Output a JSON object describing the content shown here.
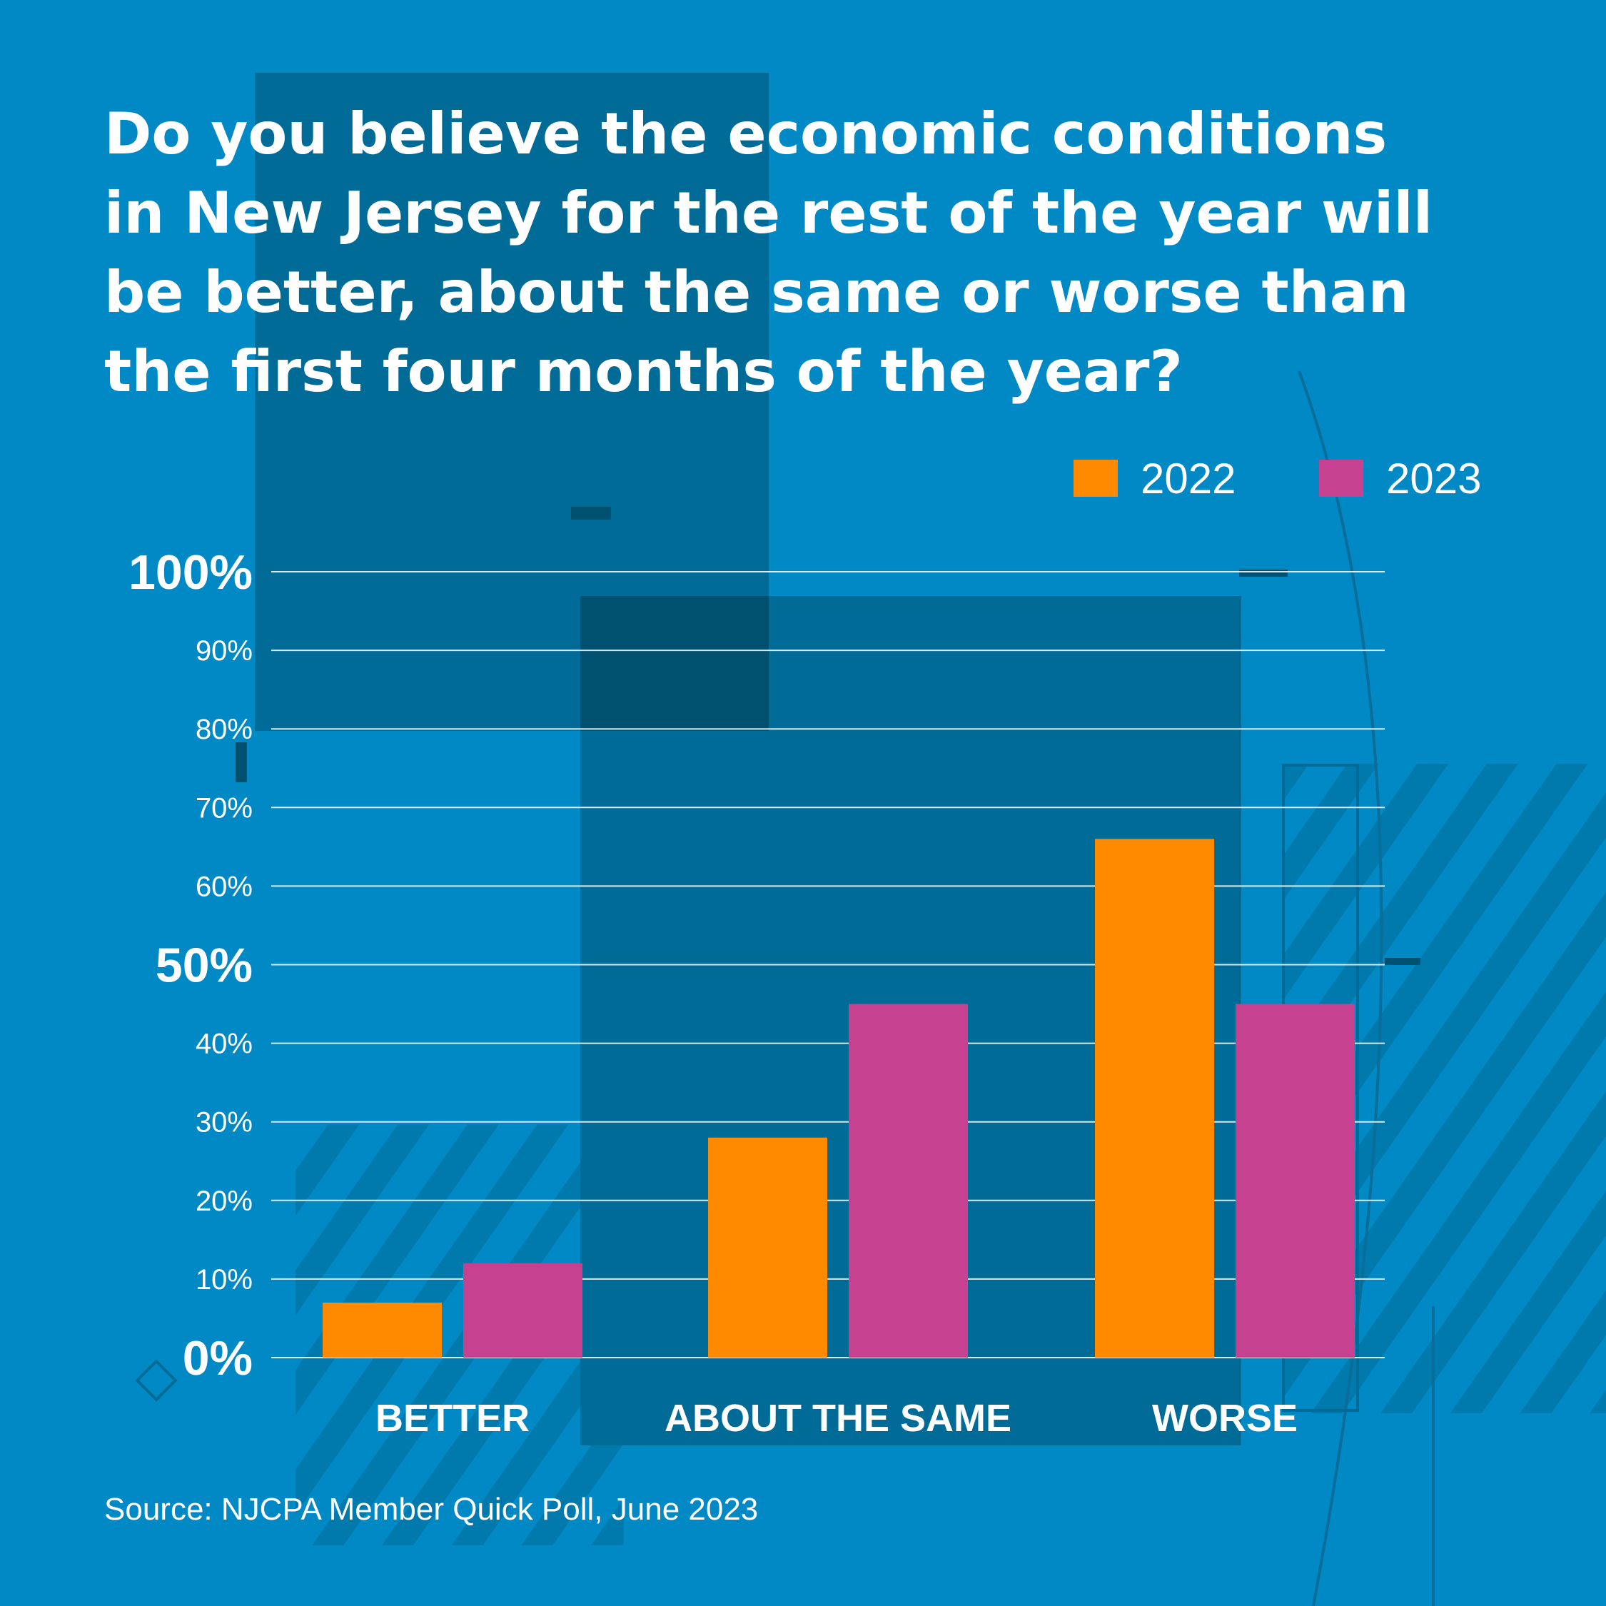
{
  "colors": {
    "background": "#0089c4",
    "panel_dark": "#006b97",
    "panel_darker": "#00506f",
    "series_2022": "#ff8a00",
    "series_2023": "#c64290",
    "text": "#ffffff"
  },
  "chart_data": {
    "type": "bar",
    "title_lines": [
      "Do you believe the economic conditions",
      "in New Jersey for the rest of the year will",
      "be better, about the same or worse than",
      "the first four months of the year?"
    ],
    "categories": [
      "BETTER",
      "ABOUT THE SAME",
      "WORSE"
    ],
    "series": [
      {
        "name": "2022",
        "values": [
          7,
          28,
          66
        ]
      },
      {
        "name": "2023",
        "values": [
          12,
          45,
          45
        ]
      }
    ],
    "ylim": [
      0,
      100
    ],
    "yticks": [
      {
        "value": 0,
        "label": "0%",
        "emphasis": true
      },
      {
        "value": 10,
        "label": "10%",
        "emphasis": false
      },
      {
        "value": 20,
        "label": "20%",
        "emphasis": false
      },
      {
        "value": 30,
        "label": "30%",
        "emphasis": false
      },
      {
        "value": 40,
        "label": "40%",
        "emphasis": false
      },
      {
        "value": 50,
        "label": "50%",
        "emphasis": true
      },
      {
        "value": 60,
        "label": "60%",
        "emphasis": false
      },
      {
        "value": 70,
        "label": "70%",
        "emphasis": false
      },
      {
        "value": 80,
        "label": "80%",
        "emphasis": false
      },
      {
        "value": 90,
        "label": "90%",
        "emphasis": false
      },
      {
        "value": 100,
        "label": "100%",
        "emphasis": true
      }
    ],
    "grid": true,
    "legend_position": "top-right"
  },
  "source": "Source: NJCPA Member Quick Poll, June 2023"
}
